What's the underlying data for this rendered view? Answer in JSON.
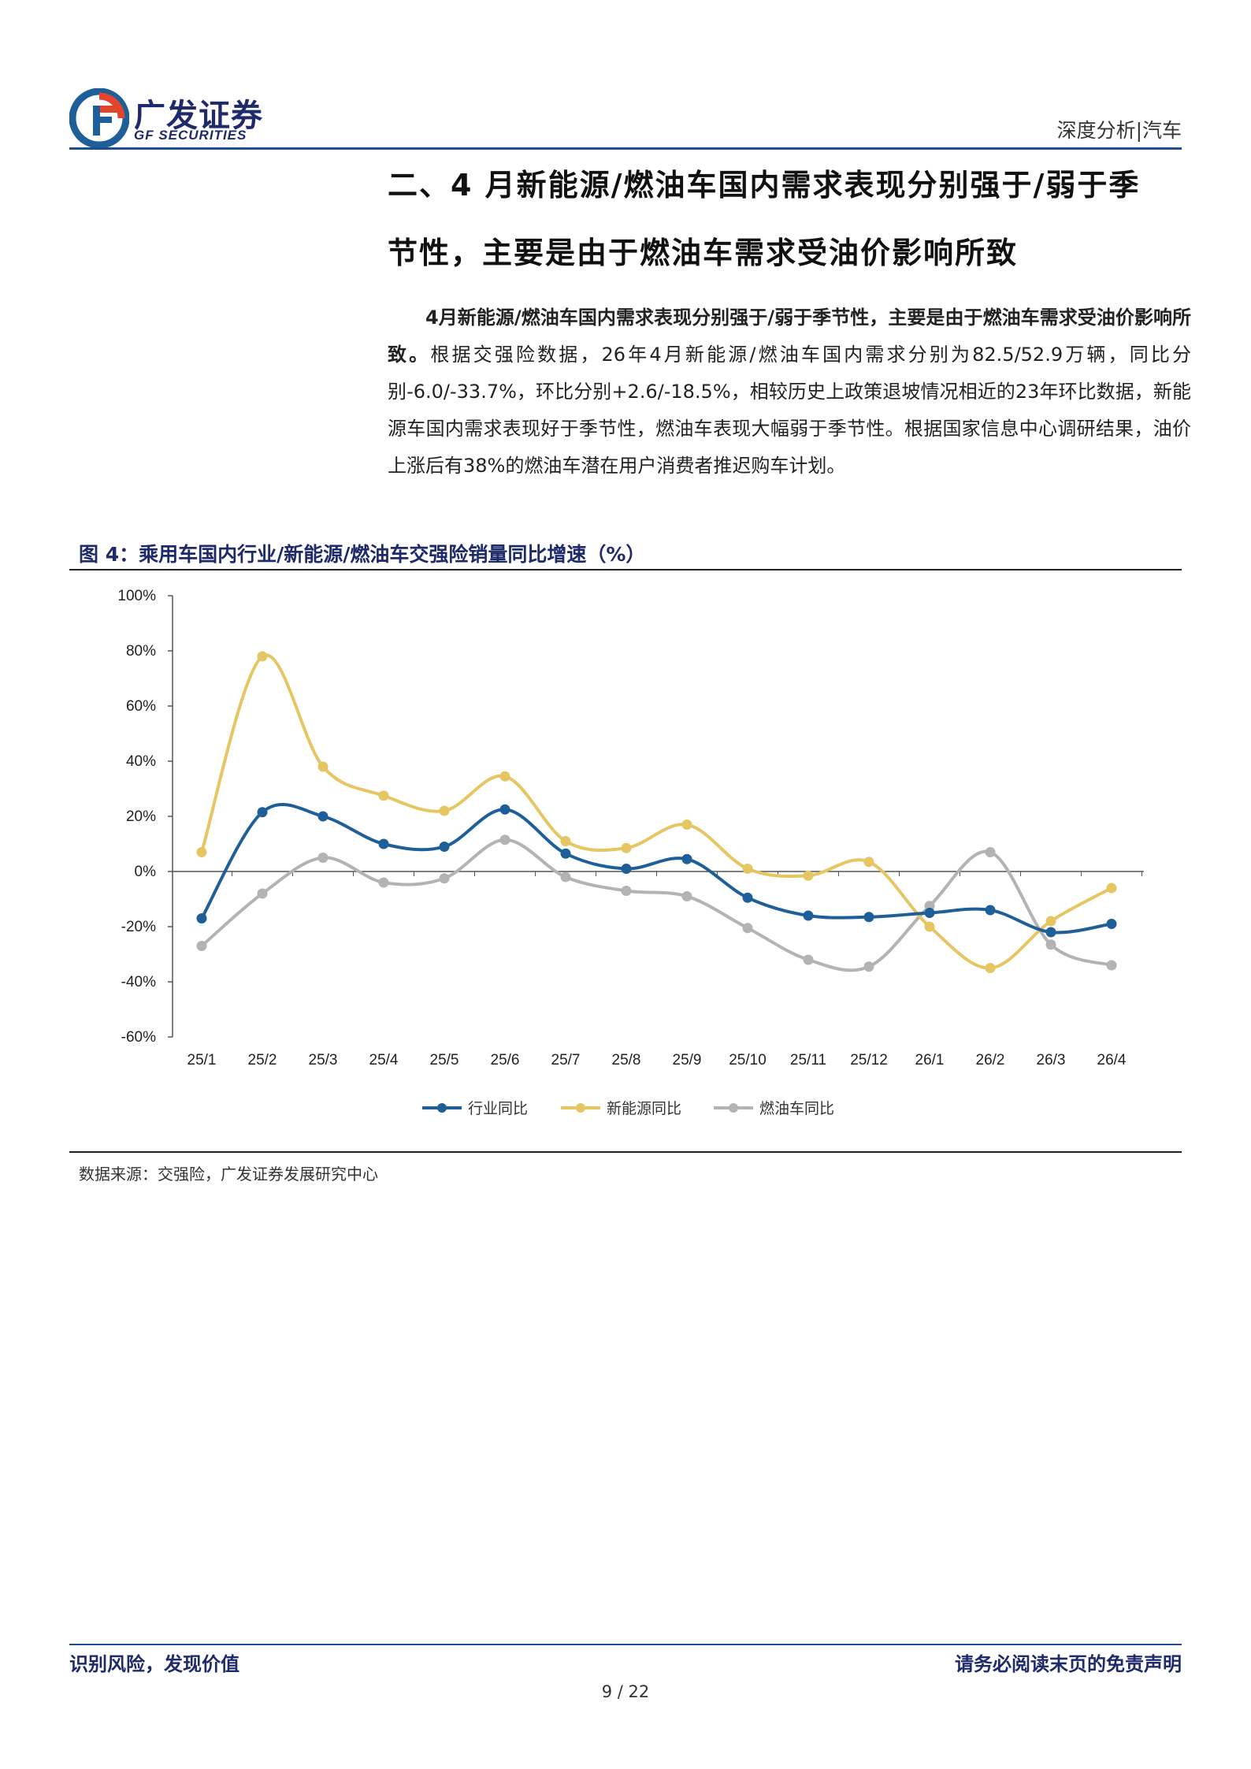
{
  "header": {
    "logo_cn": "广发证券",
    "logo_en": "GF SECURITIES",
    "tag": "深度分析|汽车"
  },
  "section": {
    "title_line1": "二、4 月新能源/燃油车国内需求表现分别强于/弱于季",
    "title_line2": "节性，主要是由于燃油车需求受油价影响所致"
  },
  "paragraph": {
    "bold": "4月新能源/燃油车国内需求表现分别强于/弱于季节性，主要是由于燃油车需求受油价影响所致。",
    "text": "根据交强险数据，26年4月新能源/燃油车国内需求分别为82.5/52.9万辆，同比分别-6.0/-33.7%，环比分别+2.6/-18.5%，相较历史上政策退坡情况相近的23年环比数据，新能源车国内需求表现好于季节性，燃油车表现大幅弱于季节性。根据国家信息中心调研结果，油价上涨后有38%的燃油车潜在用户消费者推迟购车计划。"
  },
  "figure": {
    "caption": "图 4：乘用车国内行业/新能源/燃油车交强险销量同比增速（%）",
    "source": "数据来源：交强险，广发证券发展研究中心"
  },
  "chart_data": {
    "type": "line",
    "categories": [
      "25/1",
      "25/2",
      "25/3",
      "25/4",
      "25/5",
      "25/6",
      "25/7",
      "25/8",
      "25/9",
      "25/10",
      "25/11",
      "25/12",
      "26/1",
      "26/2",
      "26/3",
      "26/4"
    ],
    "ylim": [
      -60,
      100
    ],
    "yticks": [
      100,
      80,
      60,
      40,
      20,
      0,
      -20,
      -40,
      -60
    ],
    "ytick_labels": [
      "100%",
      "80%",
      "60%",
      "40%",
      "20%",
      "0%",
      "-20%",
      "-40%",
      "-60%"
    ],
    "legend_position": "bottom",
    "series": [
      {
        "name": "行业同比",
        "color": "#1f5f99",
        "values": [
          -17,
          21.5,
          20,
          10,
          9,
          22.5,
          6.5,
          1,
          4.5,
          -9.5,
          -16,
          -16.5,
          -15,
          -14,
          -22,
          -19
        ]
      },
      {
        "name": "新能源同比",
        "color": "#e5c662",
        "values": [
          7,
          78,
          38,
          27.5,
          22,
          34.5,
          11,
          8.5,
          17,
          1,
          -1.5,
          3.5,
          -20,
          -35,
          -18,
          -6
        ]
      },
      {
        "name": "燃油车同比",
        "color": "#b3b3b3",
        "values": [
          -27,
          -8,
          5,
          -4,
          -2.5,
          11.5,
          -2,
          -7,
          -9,
          -20.5,
          -32,
          -34.5,
          -12.5,
          7,
          -26.5,
          -34
        ]
      }
    ]
  },
  "footer": {
    "left": "识别风险，发现价值",
    "right": "请务必阅读末页的免责声明",
    "page": "9 / 22"
  }
}
